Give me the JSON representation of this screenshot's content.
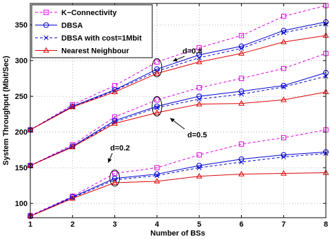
{
  "chart_data": {
    "type": "line",
    "xlabel": "Number of BSs",
    "ylabel": "System Throughput (Mbit/Sec)",
    "x": [
      1,
      2,
      3,
      4,
      5,
      6,
      7,
      8
    ],
    "xlim": [
      1,
      8
    ],
    "ylim": [
      80,
      380
    ],
    "xticks": [
      "1",
      "2",
      "3",
      "4",
      "5",
      "6",
      "7",
      "8"
    ],
    "yticks": [
      "100",
      "150",
      "200",
      "250",
      "300",
      "350"
    ],
    "grid": true,
    "legend_position": "top-left",
    "series_styles": [
      {
        "name": "K−Connectivity",
        "color": "#e000e0",
        "dash": "4,3",
        "marker": "square"
      },
      {
        "name": "DBSA",
        "color": "#0000d0",
        "dash": "",
        "marker": "circle"
      },
      {
        "name": "DBSA with cost=1Mbit",
        "color": "#0000d0",
        "dash": "4,3",
        "marker": "x"
      },
      {
        "name": "Nearest Neighbour",
        "color": "#dd0000",
        "dash": "",
        "marker": "triangle"
      }
    ],
    "groups": [
      {
        "label": "d=0.8",
        "series": [
          {
            "name": "K−Connectivity",
            "values": [
              203,
              238,
              265,
              298,
              318,
              335,
              362,
              377
            ]
          },
          {
            "name": "DBSA",
            "values": [
              203,
              236,
              259,
              288,
              308,
              320,
              342,
              354
            ]
          },
          {
            "name": "DBSA with cost=1Mbit",
            "values": [
              203,
              235,
              258,
              285,
              304,
              317,
              339,
              351
            ]
          },
          {
            "name": "Nearest Neighbour",
            "values": [
              203,
              235,
              256,
              282,
              298,
              310,
              326,
              335
            ]
          }
        ]
      },
      {
        "label": "d=0.5",
        "series": [
          {
            "name": "K−Connectivity",
            "values": [
              153,
              182,
              221,
              245,
              262,
              275,
              289,
              310
            ]
          },
          {
            "name": "DBSA",
            "values": [
              153,
              180,
              216,
              236,
              250,
              257,
              265,
              283
            ]
          },
          {
            "name": "DBSA with cost=1Mbit",
            "values": [
              153,
              179,
              214,
              234,
              246,
              253,
              263,
              278
            ]
          },
          {
            "name": "Nearest Neighbour",
            "values": [
              153,
              179,
              212,
              227,
              239,
              240,
              245,
              256
            ]
          }
        ]
      },
      {
        "label": "d=0.2",
        "series": [
          {
            "name": "K−Connectivity",
            "values": [
              83,
              110,
              142,
              150,
              168,
              183,
              192,
              203
            ]
          },
          {
            "name": "DBSA",
            "values": [
              82,
              109,
              135,
              141,
              153,
              162,
              168,
              172
            ]
          },
          {
            "name": "DBSA with cost=1Mbit",
            "values": [
              82,
              108,
              133,
              139,
              150,
              158,
              165,
              170
            ]
          },
          {
            "name": "Nearest Neighbour",
            "values": [
              82,
              107,
              129,
              131,
              138,
              141,
              142,
              143
            ]
          }
        ]
      }
    ],
    "annotations": [
      "d=0.8",
      "d=0.5",
      "d=0.2"
    ]
  }
}
